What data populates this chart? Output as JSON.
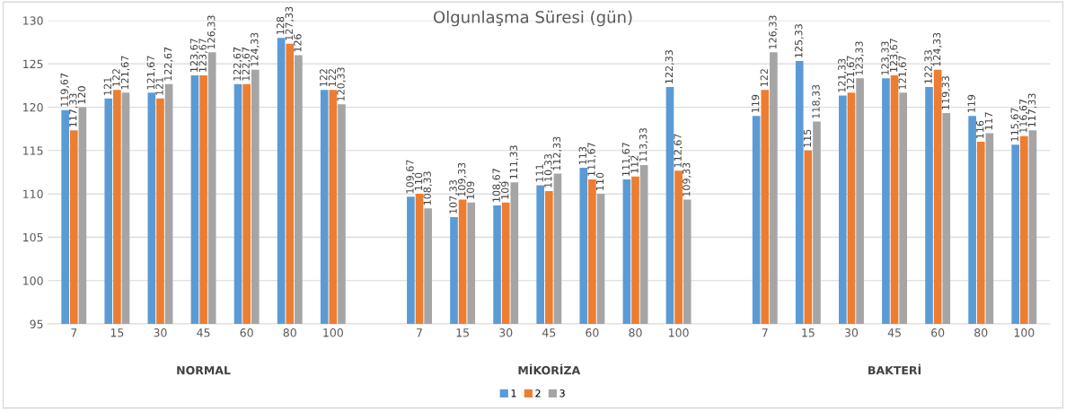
{
  "chart_data": {
    "type": "bar",
    "title": "Olgunlaşma Süresi (gün)",
    "categories": [
      "7",
      "15",
      "30",
      "45",
      "60",
      "80",
      "100",
      null,
      "7",
      "15",
      "30",
      "45",
      "60",
      "80",
      "100",
      null,
      "7",
      "15",
      "30",
      "45",
      "60",
      "80",
      "100"
    ],
    "series": [
      {
        "name": "1",
        "color": "#5b9bd5",
        "values": [
          119.67,
          121,
          121.67,
          123.67,
          122.67,
          128,
          122,
          null,
          109.67,
          107.33,
          108.67,
          111,
          113,
          111.67,
          122.33,
          null,
          119,
          125.33,
          121.33,
          123.33,
          122.33,
          119,
          115.67
        ],
        "value_labels": [
          "119,67",
          "121",
          "121,67",
          "123,67",
          "122,67",
          "128",
          "122",
          null,
          "109,67",
          "107,33",
          "108,67",
          "111",
          "113",
          "111,67",
          "122,33",
          null,
          "119",
          "125,33",
          "121,33",
          "123,33",
          "122,33",
          "119",
          "115,67"
        ]
      },
      {
        "name": "2",
        "color": "#ed7d31",
        "values": [
          117.33,
          122,
          121,
          123.67,
          122.67,
          127.33,
          122,
          null,
          110,
          109.33,
          109,
          110.33,
          111.67,
          112,
          112.67,
          null,
          122,
          115,
          121.67,
          123.67,
          124.33,
          116,
          116.67
        ],
        "value_labels": [
          "117,33",
          "122",
          "121",
          "123,67",
          "122,67",
          "127,33",
          "122",
          null,
          "110",
          "109,33",
          "109",
          "110,33",
          "111,67",
          "112",
          "112,67",
          null,
          "122",
          "115",
          "121,67",
          "123,67",
          "124,33",
          "116",
          "116,67"
        ]
      },
      {
        "name": "3",
        "color": "#a5a5a5",
        "values": [
          120,
          121.67,
          122.67,
          126.33,
          124.33,
          126,
          120.33,
          null,
          108.33,
          109,
          111.33,
          112.33,
          110,
          113.33,
          109.33,
          null,
          126.33,
          118.33,
          123.33,
          121.67,
          119.33,
          117,
          117.33
        ],
        "value_labels": [
          "120",
          "121,67",
          "122,67",
          "126,33",
          "124,33",
          "126",
          "120,33",
          null,
          "108,33",
          "109",
          "111,33",
          "112,33",
          "110",
          "113,33",
          "109,33",
          null,
          "126,33",
          "118,33",
          "123,33",
          "121,67",
          "119,33",
          "117",
          "117,33"
        ]
      }
    ],
    "annotations": [
      "NORMAL",
      "MİKORİZA",
      "BAKTERİ"
    ],
    "ylim": [
      95,
      130
    ],
    "yticks": [
      95,
      100,
      105,
      110,
      115,
      120,
      125,
      130
    ],
    "grid": "y",
    "legend": "bottom"
  }
}
